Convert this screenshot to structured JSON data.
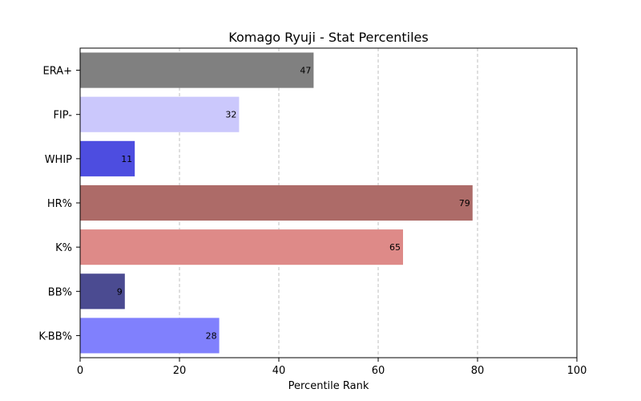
{
  "chart_data": {
    "type": "bar",
    "orientation": "horizontal",
    "title": "Komago Ryuji - Stat Percentiles",
    "xlabel": "Percentile Rank",
    "ylabel": "",
    "xlim": [
      0,
      100
    ],
    "xticks": [
      0,
      20,
      40,
      60,
      80,
      100
    ],
    "grid": "x-dashed",
    "categories": [
      "ERA+",
      "FIP-",
      "WHIP",
      "HR%",
      "K%",
      "BB%",
      "K-BB%"
    ],
    "values": [
      47,
      32,
      11,
      79,
      65,
      9,
      28
    ],
    "colors": [
      "#808080",
      "#cbc8fc",
      "#4d4de0",
      "#ad6b68",
      "#de8a88",
      "#4b4b91",
      "#8080fd"
    ]
  }
}
